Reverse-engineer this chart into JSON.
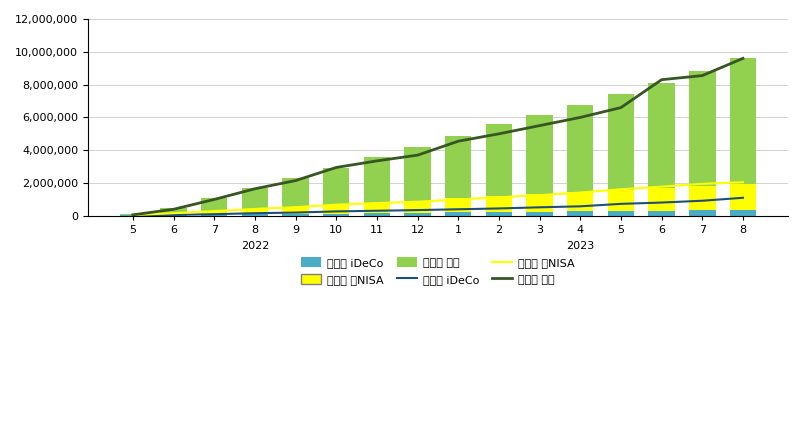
{
  "months": [
    "5",
    "6",
    "7",
    "8",
    "9",
    "10",
    "11",
    "12",
    "1",
    "2",
    "3",
    "4",
    "5",
    "6",
    "7",
    "8"
  ],
  "inv_ideco": [
    23000,
    46000,
    69000,
    92000,
    115000,
    138000,
    161000,
    184000,
    207000,
    230000,
    253000,
    276000,
    299000,
    322000,
    345000,
    368000
  ],
  "inv_nisa": [
    50000,
    150000,
    250000,
    350000,
    450000,
    550000,
    650000,
    750000,
    850000,
    950000,
    1050000,
    1150000,
    1250000,
    1400000,
    1500000,
    1600000
  ],
  "inv_tokutei": [
    30000,
    300000,
    750000,
    1250000,
    1750000,
    2250000,
    2750000,
    3250000,
    3800000,
    4400000,
    4850000,
    5350000,
    5900000,
    6400000,
    7000000,
    7650000
  ],
  "eval_ideco": [
    23000,
    55000,
    100000,
    160000,
    200000,
    270000,
    310000,
    350000,
    400000,
    450000,
    520000,
    580000,
    730000,
    810000,
    920000,
    1100000
  ],
  "eval_nisa": [
    50000,
    160000,
    290000,
    420000,
    530000,
    680000,
    780000,
    860000,
    1000000,
    1130000,
    1260000,
    1420000,
    1620000,
    1780000,
    1950000,
    2050000
  ],
  "eval_tokutei": [
    60000,
    400000,
    1000000,
    1650000,
    2150000,
    2950000,
    3350000,
    3700000,
    4550000,
    5000000,
    5500000,
    6000000,
    6600000,
    8300000,
    8550000,
    9600000
  ],
  "bar_color_ideco": "#4BACC6",
  "bar_color_nisa": "#FFFF00",
  "bar_color_tokutei": "#92D050",
  "line_color_ideco": "#1F4E79",
  "line_color_nisa": "#FFFF00",
  "line_color_tokutei": "#375623",
  "ylim": [
    0,
    12000000
  ],
  "yticks": [
    0,
    2000000,
    4000000,
    6000000,
    8000000,
    10000000,
    12000000
  ],
  "label_inv_ideco": "投賄顕 iDeCo",
  "label_inv_nisa": "投賄顕 旧NISA",
  "label_inv_tokutei": "投賄顕 特定",
  "label_eval_ideco": "評価顕 iDeCo",
  "label_eval_nisa": "評価顕 旧NISA",
  "label_eval_tokutei": "評価顕 特定",
  "year2022_idx": 3,
  "year2023_idx": 11
}
